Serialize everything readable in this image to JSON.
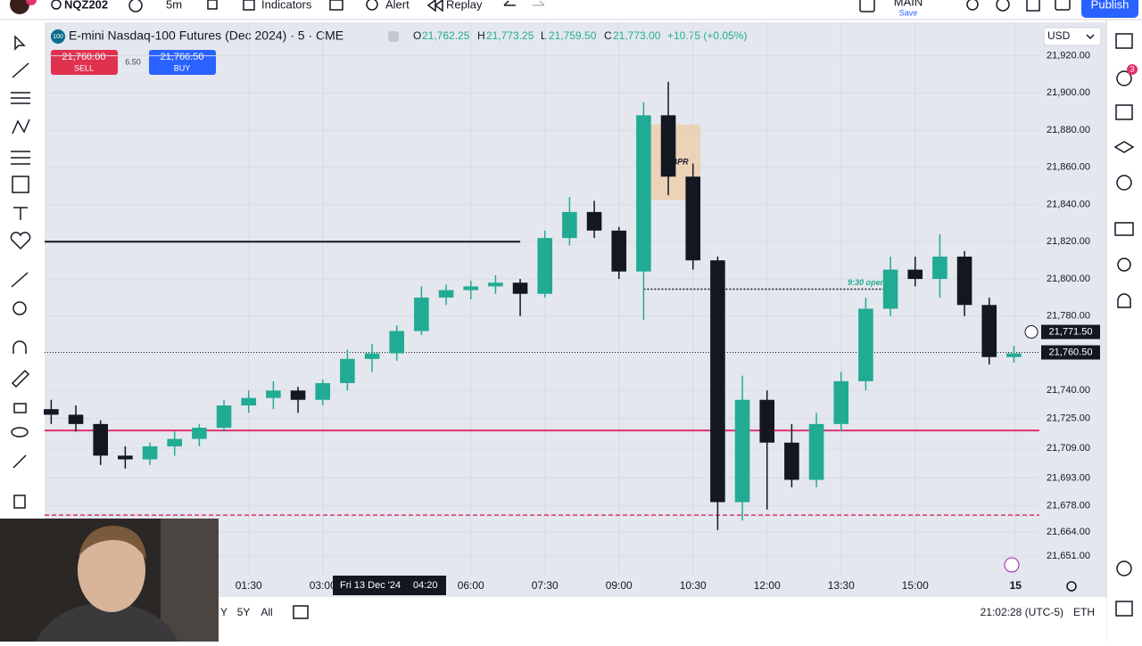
{
  "toolbar": {
    "symbol": "NQZ202",
    "interval": "5m",
    "indicators": "Indicators",
    "alert": "Alert",
    "replay": "Replay",
    "layout_name": "MAIN",
    "layout_status": "Save",
    "publish": "Publish"
  },
  "right_toolbar": {
    "alerts_badge": "3"
  },
  "legend": {
    "logo": "100",
    "title": "E-mini Nasdaq-100 Futures (Dec 2024) · 5 · CME",
    "open_label": "O",
    "open": "21,762.25",
    "high_label": "H",
    "high": "21,773.25",
    "low_label": "L",
    "low": "21,759.50",
    "close_label": "C",
    "close": "21,773.00",
    "change": "+10.75 (+0.05%)"
  },
  "trade": {
    "sell_price": "21,760.00",
    "sell": "SELL",
    "spread": "6.50",
    "buy_price": "21,766.50",
    "buy": "BUY"
  },
  "currency": "USD",
  "chart_data": {
    "type": "candlestick",
    "x": [
      -150,
      -120,
      -90,
      -60,
      -30,
      0,
      30,
      60,
      90,
      120,
      150,
      180,
      210,
      240,
      270,
      300,
      330,
      360,
      390,
      420,
      450,
      480,
      510,
      540,
      570,
      600,
      630,
      660,
      690,
      720,
      750,
      780,
      810,
      840,
      870,
      900,
      930,
      960,
      990,
      1020
    ],
    "open": [
      21730,
      21727,
      21722,
      21705,
      21703,
      21710,
      21714,
      21720,
      21732,
      21736,
      21740,
      21735,
      21744,
      21757,
      21760,
      21772,
      21790,
      21794,
      21796,
      21798,
      21792,
      21822,
      21836,
      21826,
      21804,
      21888,
      21855,
      21810,
      21680,
      21735,
      21712,
      21692,
      21722,
      21745,
      21784,
      21805,
      21800,
      21812,
      21786,
      21758
    ],
    "high": [
      21735,
      21732,
      21724,
      21710,
      21712,
      21718,
      21722,
      21735,
      21740,
      21745,
      21742,
      21746,
      21762,
      21765,
      21775,
      21796,
      21797,
      21799,
      21802,
      21800,
      21826,
      21844,
      21842,
      21828,
      21895,
      21906,
      21862,
      21812,
      21748,
      21740,
      21722,
      21728,
      21750,
      21790,
      21812,
      21812,
      21824,
      21815,
      21790,
      21764
    ],
    "low": [
      21722,
      21718,
      21700,
      21698,
      21700,
      21705,
      21710,
      21718,
      21728,
      21730,
      21728,
      21732,
      21740,
      21750,
      21756,
      21770,
      21786,
      21789,
      21792,
      21780,
      21790,
      21818,
      21822,
      21800,
      21778,
      21845,
      21805,
      21665,
      21670,
      21676,
      21688,
      21688,
      21718,
      21740,
      21780,
      21796,
      21790,
      21780,
      21754,
      21755
    ],
    "close": [
      21727,
      21722,
      21705,
      21703,
      21710,
      21714,
      21720,
      21732,
      21736,
      21740,
      21735,
      21744,
      21757,
      21760,
      21772,
      21790,
      21794,
      21796,
      21798,
      21792,
      21822,
      21836,
      21826,
      21804,
      21888,
      21855,
      21810,
      21680,
      21735,
      21712,
      21692,
      21722,
      21745,
      21784,
      21805,
      21800,
      21812,
      21786,
      21758,
      21760
    ],
    "up_color": "#22ab94",
    "down_color": "#131722",
    "xlim": [
      -158,
      1051
    ],
    "ylim": [
      21629,
      21938
    ],
    "xticks": [
      {
        "value": 90,
        "label": "01:30"
      },
      {
        "value": 180,
        "label": "03:00"
      },
      {
        "value": 360,
        "label": "06:00"
      },
      {
        "value": 450,
        "label": "07:30"
      },
      {
        "value": 540,
        "label": "09:00"
      },
      {
        "value": 630,
        "label": "10:30"
      },
      {
        "value": 720,
        "label": "12:00"
      },
      {
        "value": 810,
        "label": "13:30"
      },
      {
        "value": 900,
        "label": "15:00"
      },
      {
        "value": 1022,
        "label": "15"
      }
    ],
    "yticks": [
      {
        "value": 21920,
        "label": "21,920.00"
      },
      {
        "value": 21900,
        "label": "21,900.00"
      },
      {
        "value": 21880,
        "label": "21,880.00"
      },
      {
        "value": 21860,
        "label": "21,860.00"
      },
      {
        "value": 21840,
        "label": "21,840.00"
      },
      {
        "value": 21820,
        "label": "21,820.00"
      },
      {
        "value": 21800,
        "label": "21,800.00"
      },
      {
        "value": 21780,
        "label": "21,780.00"
      },
      {
        "value": 21740,
        "label": "21,740.00"
      },
      {
        "value": 21725,
        "label": "21,725.00"
      },
      {
        "value": 21709,
        "label": "21,709.00"
      },
      {
        "value": 21693,
        "label": "21,693.00"
      },
      {
        "value": 21678,
        "label": "21,678.00"
      },
      {
        "value": 21664,
        "label": "21,664.00"
      },
      {
        "value": 21651,
        "label": "21,651.00"
      }
    ],
    "grid": true,
    "levels": [
      {
        "value": 21820,
        "x": [
          -158,
          420
        ],
        "color": "#131722",
        "style": "solid"
      },
      {
        "value": 21718.5,
        "color": "#e0316f",
        "style": "solid"
      },
      {
        "value": 21673,
        "color": "#e0316f",
        "style": "dashed"
      },
      {
        "value": 21794.5,
        "x": [
          570,
          870
        ],
        "color": "#131722",
        "style": "dotted",
        "label": "9:30 open"
      }
    ],
    "boxes": [
      {
        "x": [
          572,
          639
        ],
        "y": [
          21842.5,
          21883
        ],
        "color": "#f0c9a0",
        "label": "BPR"
      }
    ],
    "crosshair": {
      "date": "Fri 13 Dec '24",
      "time": "04:20",
      "price": {
        "value": 21771.5,
        "label": "21,771.50"
      }
    },
    "last_price": {
      "value": 21760.5,
      "label": "21,760.50"
    }
  },
  "bottom_bar": {
    "ranges": [
      "Y",
      "5Y",
      "All"
    ],
    "clock": "21:02:28 (UTC-5)",
    "session": "ETH"
  }
}
